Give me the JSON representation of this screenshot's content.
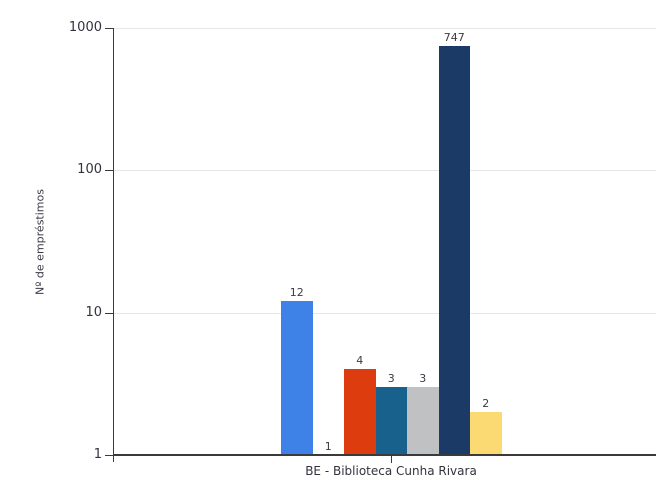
{
  "chart_data": {
    "type": "bar",
    "title": "",
    "xlabel": "",
    "ylabel": "Nº de empréstimos",
    "categories": [
      "BE - Biblioteca Cunha Rivara"
    ],
    "y_scale": "log",
    "ylim": [
      1,
      1000
    ],
    "y_ticks": [
      "1",
      "10",
      "100",
      "1000"
    ],
    "grid": "horizontal",
    "legend": "none",
    "values": [
      12,
      1,
      4,
      3,
      3,
      747,
      2
    ],
    "value_labels": [
      "12",
      "1",
      "4",
      "3",
      "3",
      "747",
      "2"
    ],
    "bar_colors": [
      "#3e82e8",
      null,
      "#dd3c0e",
      "#17618c",
      "#c0c1c3",
      "#1c3a66",
      "#fbda74"
    ]
  },
  "colors": {
    "background": "#ffffff",
    "axis": "#3a3a3a",
    "gridline": "#e7e7e7",
    "tick_text": "#33333e",
    "value_text": "#3b3b47"
  }
}
